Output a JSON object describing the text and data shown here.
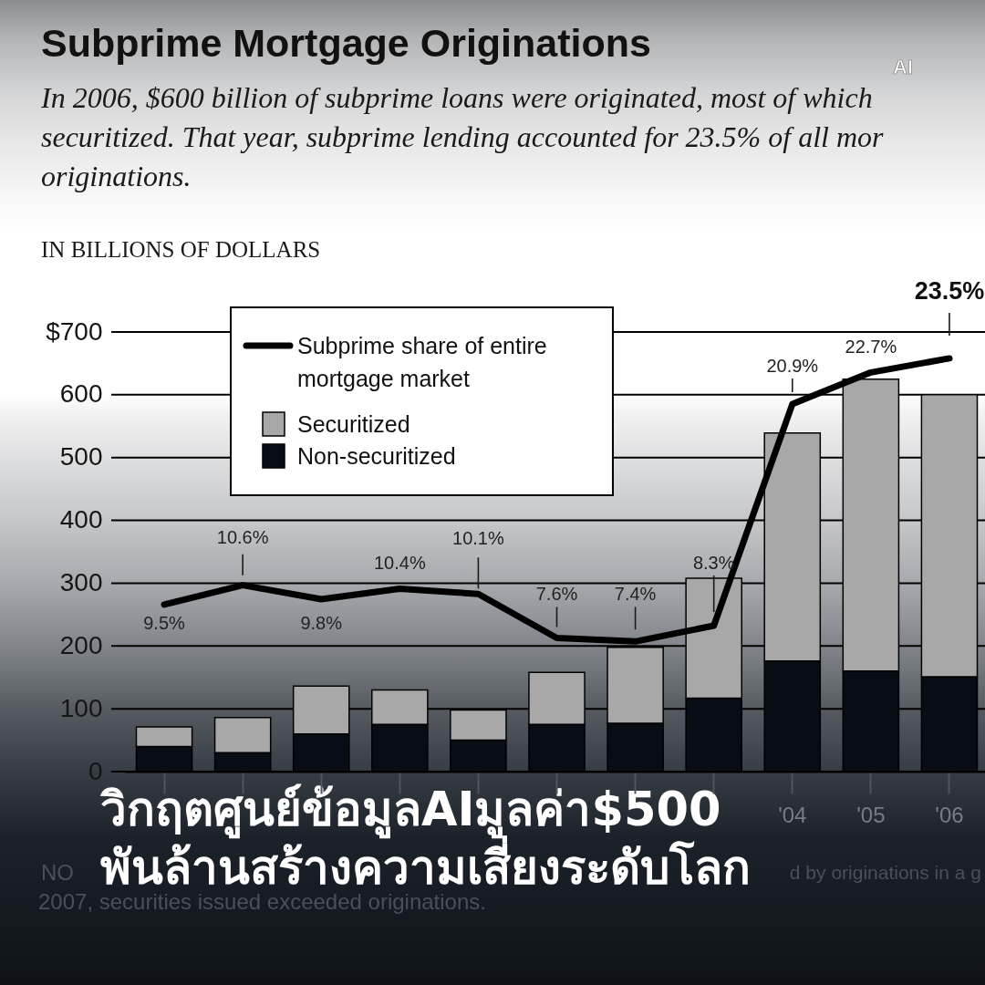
{
  "chart_data": {
    "type": "bar",
    "title": "Subprime Mortgage Originations",
    "subtitle": "In 2006, $600 billion of subprime loans were originated, most of which\nsecuritized. That year, subprime lending accounted for 23.5% of all mor\noriginations.",
    "ylabel": "IN BILLIONS OF DOLLARS",
    "categories": [
      null,
      null,
      null,
      null,
      null,
      null,
      null,
      null,
      "'04",
      "'05",
      "'06"
    ],
    "stacked": true,
    "series": [
      {
        "name": "Non-securitized",
        "color": "#080c14",
        "values": [
          40,
          30,
          60,
          75,
          50,
          75,
          77,
          117,
          176,
          160,
          151
        ]
      },
      {
        "name": "Securitized",
        "color": "#a8a8a8",
        "values": [
          31,
          56,
          76,
          55,
          48,
          83,
          121,
          191,
          363,
          465,
          449
        ]
      },
      {
        "name": "Subprime share of entire mortgage market",
        "type": "line",
        "axis": "y2",
        "color": "#000000",
        "values": [
          9.5,
          10.6,
          9.8,
          10.4,
          10.1,
          7.6,
          7.4,
          8.3,
          20.9,
          22.7,
          23.5
        ],
        "value_labels": [
          "9.5%",
          "10.6%",
          "9.8%",
          "10.4%",
          "10.1%",
          "7.6%",
          "7.4%",
          "8.3%",
          "20.9%",
          "22.7%",
          "23.5%"
        ]
      }
    ],
    "ylim": [
      0,
      700
    ],
    "yticks": [
      {
        "value": 700,
        "label": "$700"
      },
      600,
      500,
      400,
      300,
      200,
      100,
      0
    ],
    "y2lim": [
      0,
      25
    ],
    "grid": "y",
    "legend": "top left",
    "line_style": "solid",
    "annotations": [
      "วิกฤตศูนย์ข้อมูลAIมูลค่า$500\nพันล้านสร้างความเสี่ยงระดับโลก",
      "AI",
      "NO",
      "d by originations in a g",
      "2007, securities issued exceeded originations."
    ]
  }
}
